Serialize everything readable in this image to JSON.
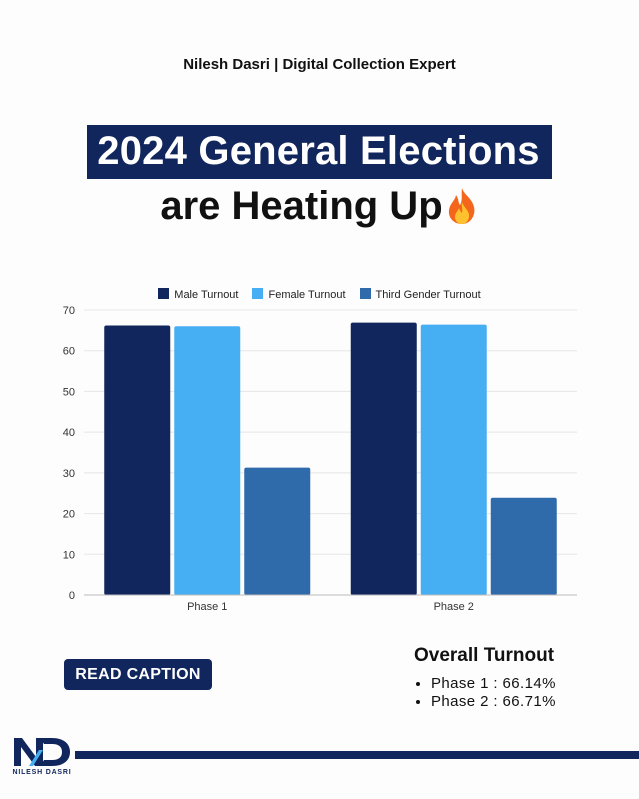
{
  "header": {
    "byline": "Nilesh Dasri | Digital Collection Expert",
    "title_line1": "2024 General Elections",
    "title_line2": "are Heating Up",
    "title_emoji_icon": "fire-icon"
  },
  "chart_data": {
    "type": "bar",
    "categories": [
      "Phase 1",
      "Phase 2"
    ],
    "series": [
      {
        "name": "Male Turnout",
        "color": "#10265c",
        "values": [
          66.2,
          66.9
        ]
      },
      {
        "name": "Female Turnout",
        "color": "#46aef3",
        "values": [
          66.0,
          66.4
        ]
      },
      {
        "name": "Third Gender Turnout",
        "color": "#2f6aab",
        "values": [
          31.3,
          23.9
        ]
      }
    ],
    "ylim": [
      0,
      70
    ],
    "yticks": [
      0,
      10,
      20,
      30,
      40,
      50,
      60,
      70
    ],
    "grid": true,
    "legend_position": "top"
  },
  "actions": {
    "read_caption_label": "READ CAPTION"
  },
  "overall": {
    "title": "Overall Turnout",
    "items": [
      "Phase 1 : 66.14%",
      "Phase 2 : 66.71%"
    ]
  },
  "footer": {
    "logo_text": "NILESH DASRI",
    "logo_mark": "ND"
  },
  "colors": {
    "brand": "#10265c",
    "background": "#fdfdfd"
  }
}
